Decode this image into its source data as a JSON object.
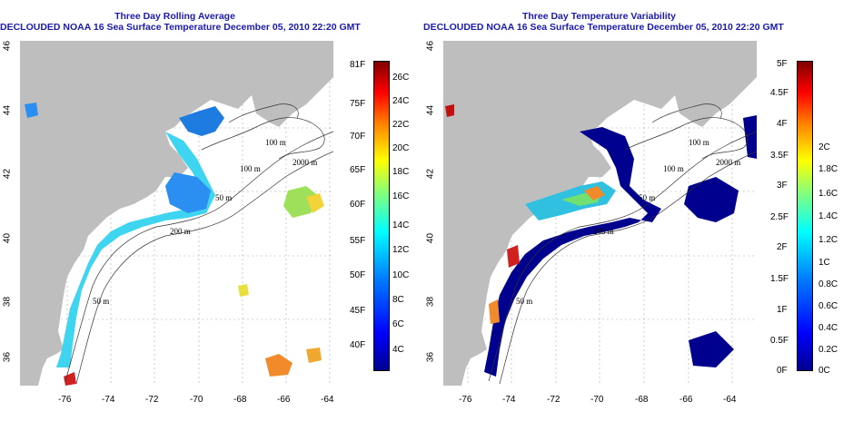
{
  "left_panel": {
    "title_line1": "Three Day Rolling Average",
    "title_line2": "DECLOUDED NOAA 16 Sea Surface Temperature December 05, 2010 22:20 GMT",
    "x_ticks": [
      "-76",
      "-74",
      "-72",
      "-70",
      "-68",
      "-66",
      "-64"
    ],
    "y_ticks": [
      "46",
      "44",
      "42",
      "40",
      "38",
      "36"
    ],
    "contour_labels": [
      "100 m",
      "100 m",
      "2000 m",
      "50 m",
      "200 m",
      "50 m"
    ],
    "colorbar_f": [
      "81F",
      "75F",
      "70F",
      "65F",
      "60F",
      "55F",
      "50F",
      "45F",
      "40F"
    ],
    "colorbar_c": [
      "26C",
      "24C",
      "22C",
      "20C",
      "18C",
      "16C",
      "14C",
      "12C",
      "10C",
      "8C",
      "6C",
      "4C"
    ]
  },
  "right_panel": {
    "title_line1": "Three Day Temperature Variability",
    "title_line2": "DECLOUDED NOAA 16 Sea Surface Temperature December 05, 2010 22:20 GMT",
    "x_ticks": [
      "-76",
      "-74",
      "-72",
      "-70",
      "-68",
      "-66",
      "-64"
    ],
    "y_ticks": [
      "46",
      "44",
      "42",
      "40",
      "38",
      "36"
    ],
    "contour_labels": [
      "100 m",
      "100 m",
      "2000 m",
      "50 m",
      "200 m",
      "50 m"
    ],
    "colorbar_f": [
      "5F",
      "4.5F",
      "4F",
      "3.5F",
      "3F",
      "2.5F",
      "2F",
      "1.5F",
      "1F",
      "0.5F",
      "0F"
    ],
    "colorbar_c": [
      "2C",
      "1.8C",
      "1.6C",
      "1.4C",
      "1.2C",
      "1C",
      "0.8C",
      "0.6C",
      "0.4C",
      "0.2C",
      "0C"
    ]
  },
  "colors": {
    "land": "#bebebe",
    "title": "#1a1ab0",
    "jet_low": "#00008f",
    "jet_high": "#800000"
  }
}
